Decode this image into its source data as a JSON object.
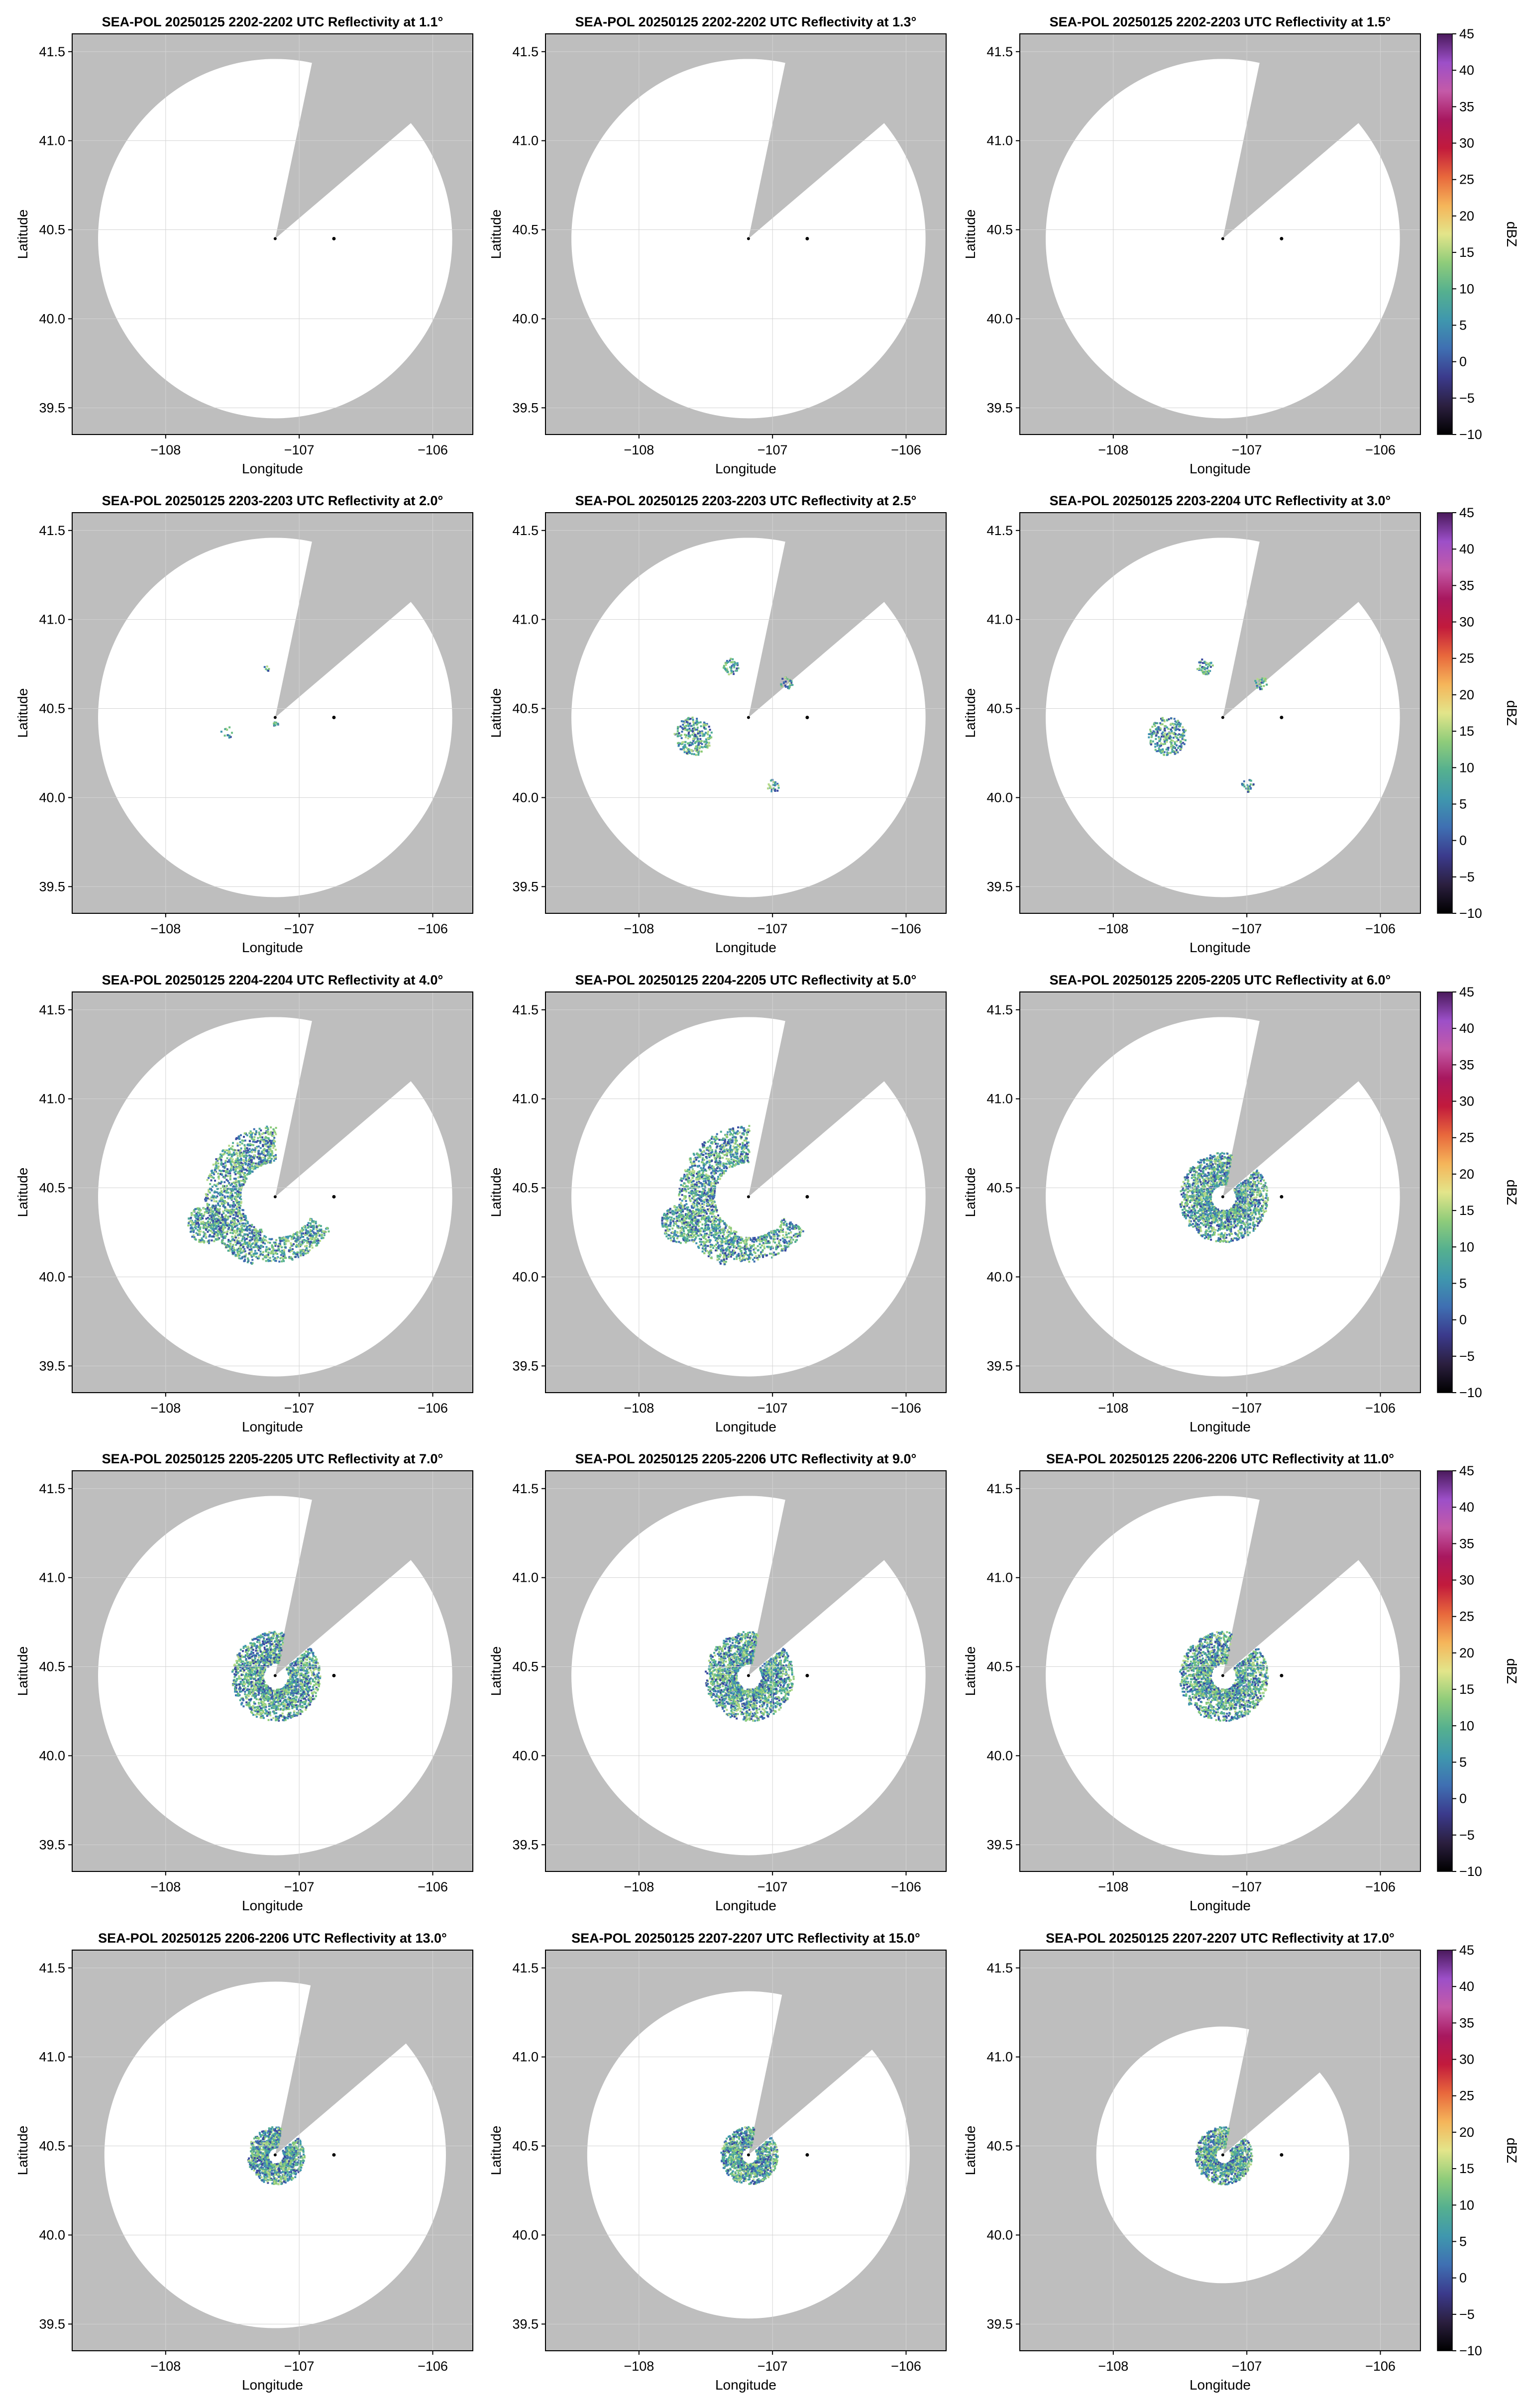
{
  "chart_data": {
    "type": "heatmap",
    "grid": true,
    "layout": "5 rows x 3 columns of radar PPI panels; one colorbar per row on the right",
    "xlabel": "Longitude",
    "ylabel": "Latitude",
    "xlim": [
      -108.7,
      -105.7
    ],
    "ylim": [
      39.35,
      41.6
    ],
    "x_ticks": [
      -108,
      -107,
      -106
    ],
    "x_tick_labels": [
      "−108",
      "−107",
      "−106"
    ],
    "y_ticks": [
      39.5,
      40.0,
      40.5,
      41.0,
      41.5
    ],
    "y_tick_labels": [
      "39.5",
      "40.0",
      "40.5",
      "41.0",
      "41.5"
    ],
    "radar_location": [
      -107.18,
      40.45
    ],
    "second_marker_location": [
      -106.74,
      40.45
    ],
    "blocked_sectors_azimuth_deg": [
      [
        12,
        50
      ]
    ],
    "colorbar": {
      "label": "dBZ",
      "range": [
        -10,
        45
      ],
      "ticks": [
        -10,
        -5,
        0,
        5,
        10,
        15,
        20,
        25,
        30,
        35,
        40,
        45
      ],
      "tick_labels": [
        "−10",
        "−5",
        "0",
        "5",
        "10",
        "15",
        "20",
        "25",
        "30",
        "35",
        "40",
        "45"
      ],
      "colors": [
        "#000000",
        "#2b1f3f",
        "#3b3a8c",
        "#3f6fb2",
        "#3f97ae",
        "#55b08f",
        "#8fcc7a",
        "#e3e58a",
        "#f5b55a",
        "#e8683c",
        "#c21a3c",
        "#a8185f",
        "#c45aa8",
        "#9c4fc8",
        "#4a1a5c"
      ]
    },
    "colors": {
      "outside_range": "#bebebe",
      "inside_range": "#ffffff",
      "gridline": "#d3d3d3",
      "marker": "#000000"
    },
    "panels": [
      {
        "title": "SEA-POL 20250125 2202-2202 UTC Reflectivity at 1.1°",
        "elevation_deg": 1.1,
        "range_km": 112,
        "echo": "none"
      },
      {
        "title": "SEA-POL 20250125 2202-2202 UTC Reflectivity at 1.3°",
        "elevation_deg": 1.3,
        "range_km": 112,
        "echo": "none"
      },
      {
        "title": "SEA-POL 20250125 2202-2203 UTC Reflectivity at 1.5°",
        "elevation_deg": 1.5,
        "range_km": 112,
        "echo": "none"
      },
      {
        "title": "SEA-POL 20250125 2203-2203 UTC Reflectivity at 2.0°",
        "elevation_deg": 2.0,
        "range_km": 112,
        "echo": "sparse"
      },
      {
        "title": "SEA-POL 20250125 2203-2203 UTC Reflectivity at 2.5°",
        "elevation_deg": 2.5,
        "range_km": 112,
        "echo": "scattered"
      },
      {
        "title": "SEA-POL 20250125 2203-2204 UTC Reflectivity at 3.0°",
        "elevation_deg": 3.0,
        "range_km": 112,
        "echo": "scattered"
      },
      {
        "title": "SEA-POL 20250125 2204-2204 UTC Reflectivity at 4.0°",
        "elevation_deg": 4.0,
        "range_km": 112,
        "echo": "partial-ring"
      },
      {
        "title": "SEA-POL 20250125 2204-2205 UTC Reflectivity at 5.0°",
        "elevation_deg": 5.0,
        "range_km": 112,
        "echo": "partial-ring"
      },
      {
        "title": "SEA-POL 20250125 2205-2205 UTC Reflectivity at 6.0°",
        "elevation_deg": 6.0,
        "range_km": 112,
        "echo": "ring"
      },
      {
        "title": "SEA-POL 20250125 2205-2205 UTC Reflectivity at 7.0°",
        "elevation_deg": 7.0,
        "range_km": 112,
        "echo": "ring"
      },
      {
        "title": "SEA-POL 20250125 2205-2206 UTC Reflectivity at 9.0°",
        "elevation_deg": 9.0,
        "range_km": 112,
        "echo": "ring"
      },
      {
        "title": "SEA-POL 20250125 2206-2206 UTC Reflectivity at 11.0°",
        "elevation_deg": 11.0,
        "range_km": 112,
        "echo": "ring"
      },
      {
        "title": "SEA-POL 20250125 2206-2206 UTC Reflectivity at 13.0°",
        "elevation_deg": 13.0,
        "range_km": 108,
        "echo": "small-ring"
      },
      {
        "title": "SEA-POL 20250125 2207-2207 UTC Reflectivity at 15.0°",
        "elevation_deg": 15.0,
        "range_km": 102,
        "echo": "small-ring"
      },
      {
        "title": "SEA-POL 20250125 2207-2207 UTC Reflectivity at 17.0°",
        "elevation_deg": 17.0,
        "range_km": 80,
        "echo": "small-ring"
      }
    ]
  }
}
